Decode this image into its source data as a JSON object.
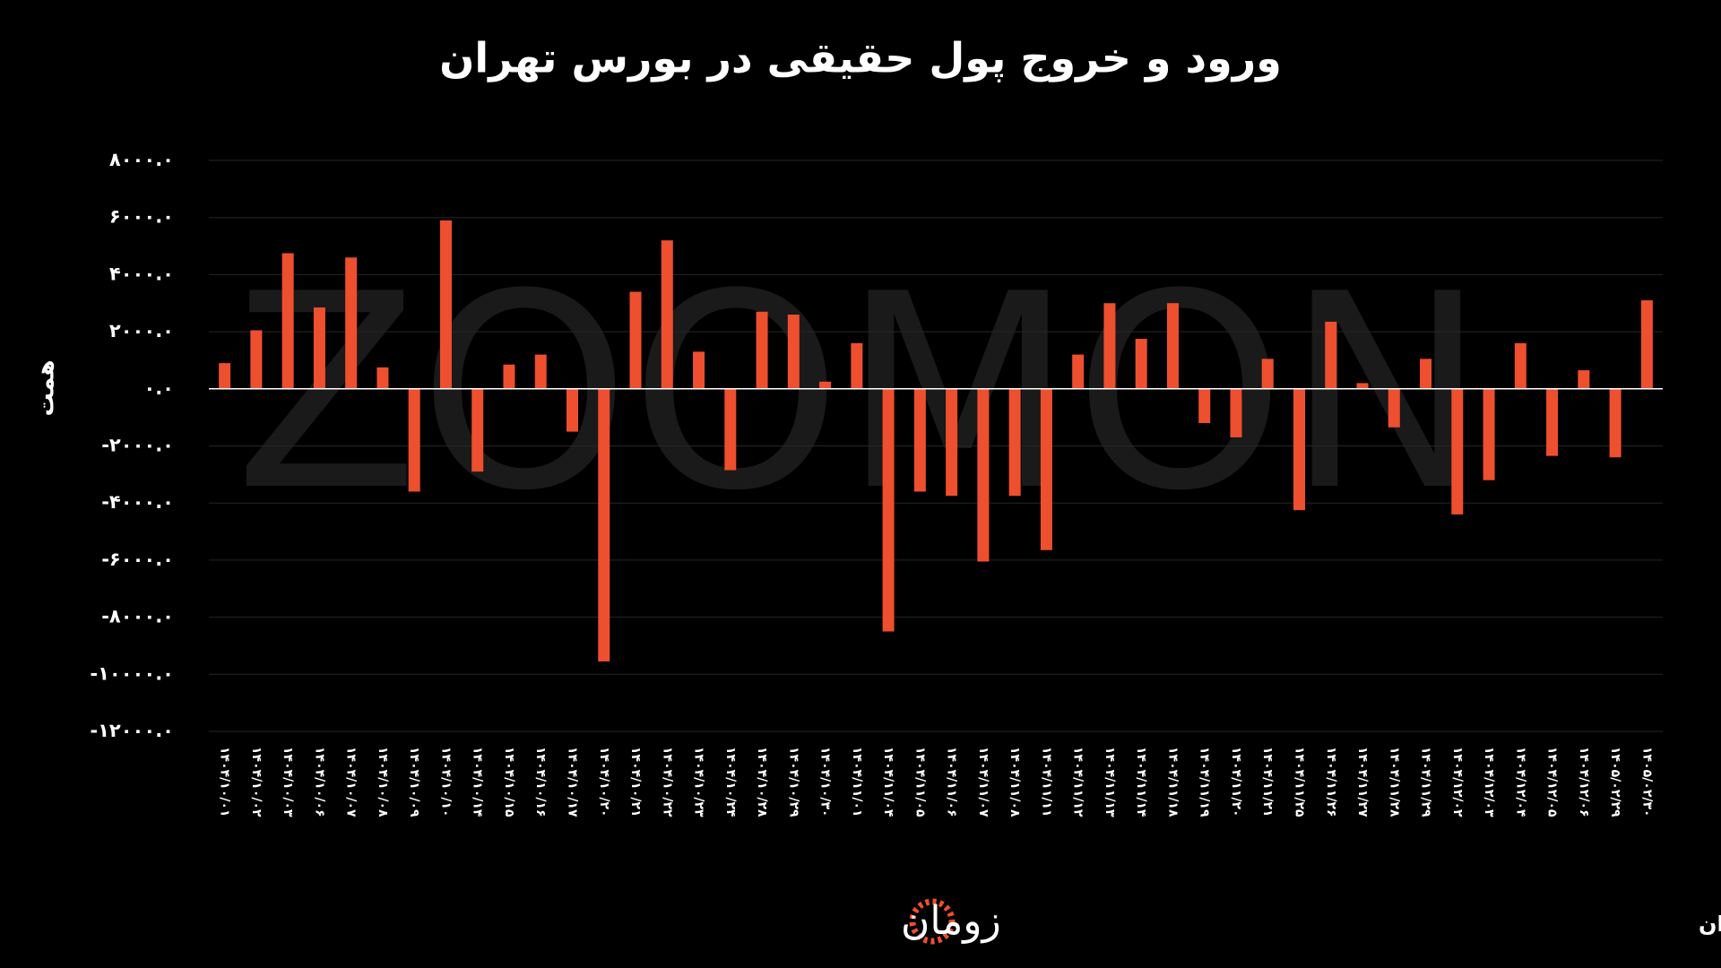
{
  "chart_data": {
    "type": "bar",
    "title": "ورود و خروج پول حقیقی در بورس تهران",
    "y_label": "همت",
    "source": "منبع: بورس تهران",
    "logo": "زومان",
    "watermark": "ZOOMON",
    "color": "#ee4f2e",
    "grid": true,
    "categories": [
      "۱۴۰۴/۱۰/۰۱",
      "۱۴۰۴/۱۰/۰۲",
      "۱۴۰۴/۱۰/۰۳",
      "۱۴۰۴/۱۰/۰۶",
      "۱۴۰۴/۱۰/۰۷",
      "۱۴۰۴/۱۰/۰۸",
      "۱۴۰۴/۱۰/۰۹",
      "۱۴۰۴/۱۰/۱۰",
      "۱۴۰۴/۱۰/۱۴",
      "۱۴۰۴/۱۰/۱۵",
      "۱۴۰۴/۱۰/۱۶",
      "۱۴۰۴/۱۰/۱۷",
      "۱۴۰۴/۱۰/۲۰",
      "۱۴۰۴/۱۰/۲۱",
      "۱۴۰۴/۱۰/۲۲",
      "۱۴۰۴/۱۰/۲۳",
      "۱۴۰۴/۱۰/۲۴",
      "۱۴۰۴/۱۰/۲۸",
      "۱۴۰۴/۱۰/۲۹",
      "۱۴۰۴/۱۰/۳۰",
      "۱۴۰۴/۱۱/۰۱",
      "۱۴۰۴/۱۱/۰۴",
      "۱۴۰۴/۱۱/۰۵",
      "۱۴۰۴/۱۱/۰۶",
      "۱۴۰۴/۱۱/۰۷",
      "۱۴۰۴/۱۱/۰۸",
      "۱۴۰۴/۱۱/۱۱",
      "۱۴۰۴/۱۱/۱۲",
      "۱۴۰۴/۱۱/۱۳",
      "۱۴۰۴/۱۱/۱۴",
      "۱۴۰۴/۱۱/۱۸",
      "۱۴۰۴/۱۱/۱۹",
      "۱۴۰۴/۱۱/۲۰",
      "۱۴۰۴/۱۱/۲۱",
      "۱۴۰۴/۱۱/۲۵",
      "۱۴۰۴/۱۱/۲۶",
      "۱۴۰۴/۱۱/۲۷",
      "۱۴۰۴/۱۱/۲۸",
      "۱۴۰۴/۱۱/۲۹",
      "۱۴۰۴/۱۲/۰۲",
      "۱۴۰۴/۱۲/۰۳",
      "۱۴۰۴/۱۲/۰۴",
      "۱۴۰۴/۱۲/۰۵",
      "۱۴۰۴/۱۲/۰۶",
      "۱۴۰۵/۰۲/۲۹",
      "۱۴۰۵/۰۲/۳۰"
    ],
    "values": [
      900,
      2050,
      4750,
      2850,
      4600,
      750,
      -3600,
      5900,
      -2900,
      850,
      1200,
      -1500,
      -9550,
      3400,
      5200,
      1300,
      -2850,
      2700,
      2600,
      250,
      1600,
      -8500,
      -3600,
      -3750,
      -6050,
      -3750,
      -5650,
      1200,
      3000,
      1750,
      3000,
      -1200,
      -1700,
      1050,
      -4250,
      2350,
      200,
      -1350,
      1050,
      -4400,
      -3200,
      1600,
      -2350,
      650,
      -2400,
      3100
    ],
    "ylim": [
      -12000,
      8000
    ],
    "yticks": [
      {
        "value": -12000,
        "label": "-۱۲۰۰۰.۰"
      },
      {
        "value": -10000,
        "label": "-۱۰۰۰۰.۰"
      },
      {
        "value": -8000,
        "label": "-۸۰۰۰.۰"
      },
      {
        "value": -6000,
        "label": "-۶۰۰۰.۰"
      },
      {
        "value": -4000,
        "label": "-۴۰۰۰.۰"
      },
      {
        "value": -2000,
        "label": "-۲۰۰۰.۰"
      },
      {
        "value": 0,
        "label": "۰.۰"
      },
      {
        "value": 2000,
        "label": "۲۰۰۰.۰"
      },
      {
        "value": 4000,
        "label": "۴۰۰۰.۰"
      },
      {
        "value": 6000,
        "label": "۶۰۰۰.۰"
      },
      {
        "value": 8000,
        "label": "۸۰۰۰.۰"
      }
    ]
  }
}
